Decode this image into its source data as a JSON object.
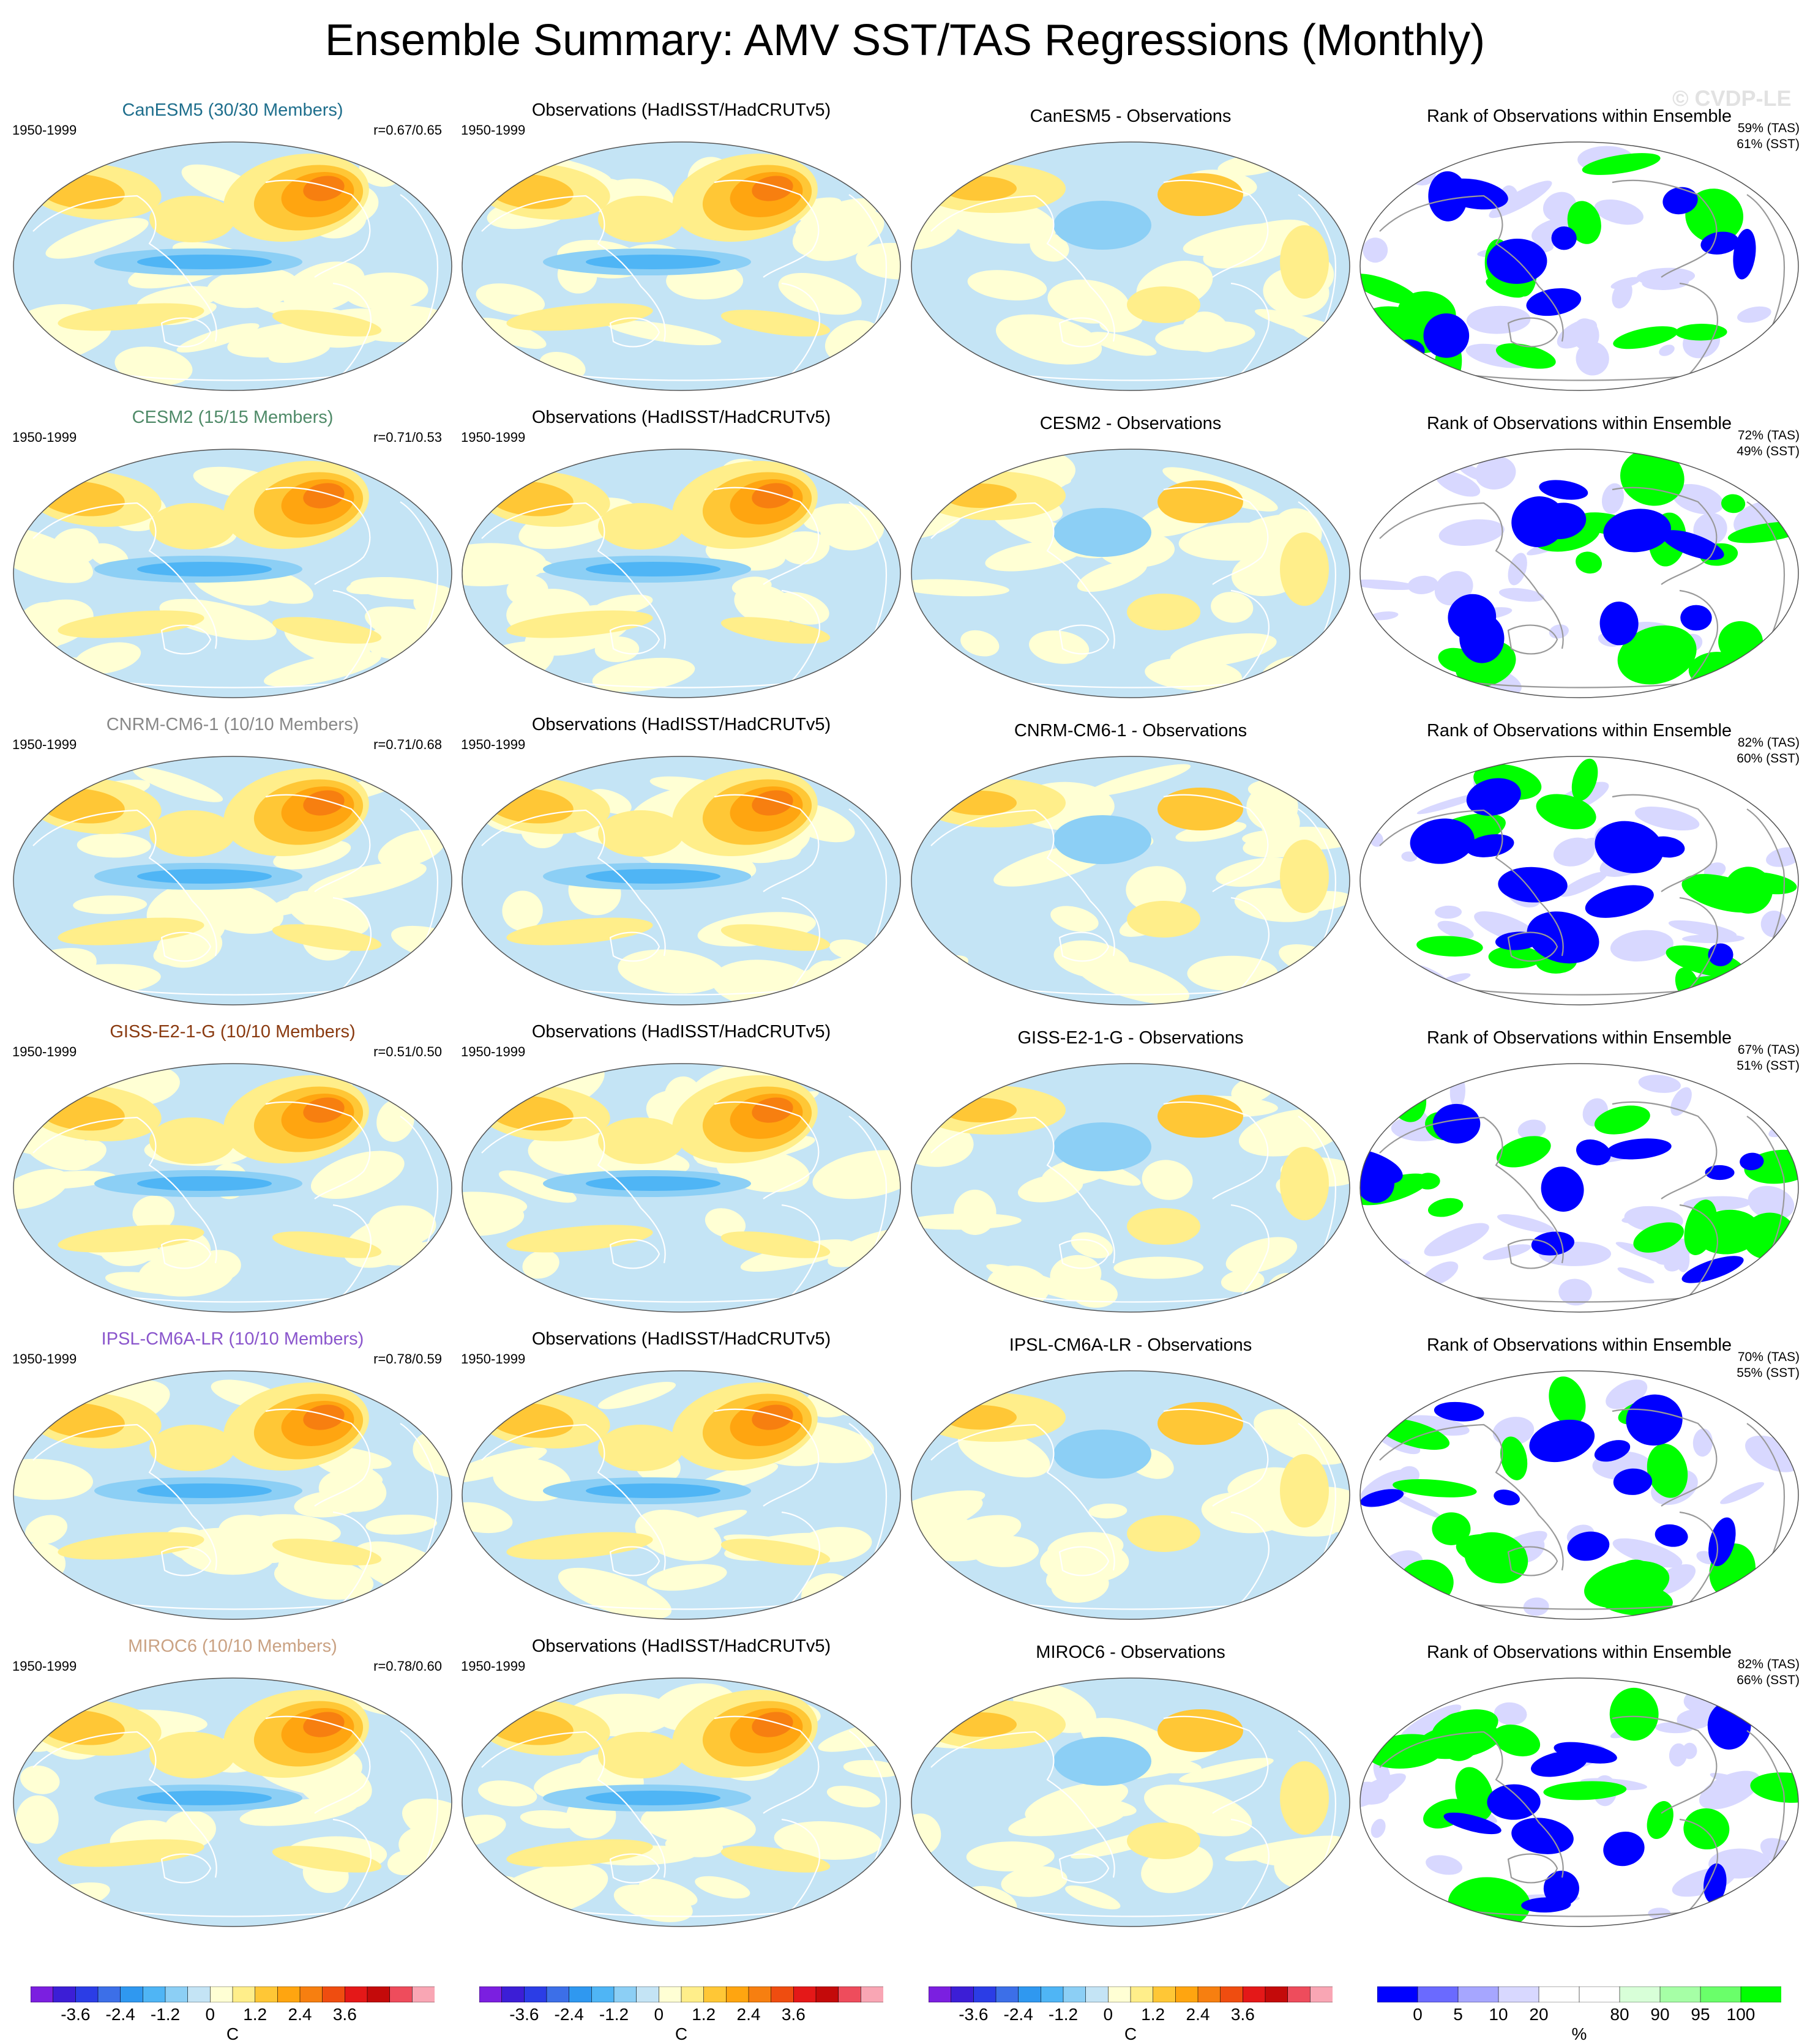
{
  "title": "Ensemble Summary: AMV SST/TAS Regressions (Monthly)",
  "watermark": "© CVDP-LE",
  "column_titles": {
    "observations": "Observations (HadISST/HadCRUTv5)",
    "rank": "Rank of Observations within Ensemble"
  },
  "rows": [
    {
      "model": "CanESM5",
      "model_title": "CanESM5 (30/30 Members)",
      "title_color": "#1e6e8c",
      "period": "1950-1999",
      "obs_period": "1950-1999",
      "r": "r=0.67/0.65",
      "diff_title": "CanESM5 - Observations",
      "rank_tas": "59% (TAS)",
      "rank_sst": "61% (SST)"
    },
    {
      "model": "CESM2",
      "model_title": "CESM2 (15/15 Members)",
      "title_color": "#4f8a68",
      "period": "1950-1999",
      "obs_period": "1950-1999",
      "r": "r=0.71/0.53",
      "diff_title": "CESM2 - Observations",
      "rank_tas": "72% (TAS)",
      "rank_sst": "49% (SST)"
    },
    {
      "model": "CNRM-CM6-1",
      "model_title": "CNRM-CM6-1 (10/10 Members)",
      "title_color": "#888888",
      "period": "1950-1999",
      "obs_period": "1950-1999",
      "r": "r=0.71/0.68",
      "diff_title": "CNRM-CM6-1 - Observations",
      "rank_tas": "82% (TAS)",
      "rank_sst": "60% (SST)"
    },
    {
      "model": "GISS-E2-1-G",
      "model_title": "GISS-E2-1-G (10/10 Members)",
      "title_color": "#8a3a10",
      "period": "1950-1999",
      "obs_period": "1950-1999",
      "r": "r=0.51/0.50",
      "diff_title": "GISS-E2-1-G - Observations",
      "rank_tas": "67% (TAS)",
      "rank_sst": "51% (SST)"
    },
    {
      "model": "IPSL-CM6A-LR",
      "model_title": "IPSL-CM6A-LR (10/10 Members)",
      "title_color": "#8a55cc",
      "period": "1950-1999",
      "obs_period": "1950-1999",
      "r": "r=0.78/0.59",
      "diff_title": "IPSL-CM6A-LR - Observations",
      "rank_tas": "70% (TAS)",
      "rank_sst": "55% (SST)"
    },
    {
      "model": "MIROC6",
      "model_title": "MIROC6 (10/10 Members)",
      "title_color": "#caa283",
      "period": "1950-1999",
      "obs_period": "1950-1999",
      "r": "r=0.78/0.60",
      "diff_title": "MIROC6 - Observations",
      "rank_tas": "82% (TAS)",
      "rank_sst": "66% (SST)"
    }
  ],
  "temp_colorbar": {
    "colors": [
      "#7b1fe0",
      "#3c1ed6",
      "#2b3de6",
      "#3c6fe8",
      "#2f98f0",
      "#4fb5f5",
      "#8ccff5",
      "#c4e4f5",
      "#ffffd4",
      "#ffee8a",
      "#ffc736",
      "#ffa510",
      "#f77f10",
      "#ef4d10",
      "#e41818",
      "#c40a0a",
      "#ee4c5c",
      "#f9a6b4"
    ],
    "tick_labels": [
      "-3.6",
      "-2.4",
      "-1.2",
      "0",
      "1.2",
      "2.4",
      "3.6"
    ],
    "tick_positions": [
      2,
      4,
      6,
      8,
      10,
      12,
      14
    ],
    "unit": "C"
  },
  "rank_colorbar": {
    "colors": [
      "#0000ff",
      "#6a6aff",
      "#a6a6ff",
      "#d8d8ff",
      "#ffffff",
      "#ffffff",
      "#d8ffd8",
      "#a6ffa6",
      "#6aff6a",
      "#00ff00"
    ],
    "tick_labels": [
      "0",
      "5",
      "10",
      "20",
      "80",
      "90",
      "95",
      "100"
    ],
    "tick_positions": [
      1,
      2,
      3,
      4,
      6,
      7,
      8,
      9
    ],
    "unit": "%"
  }
}
